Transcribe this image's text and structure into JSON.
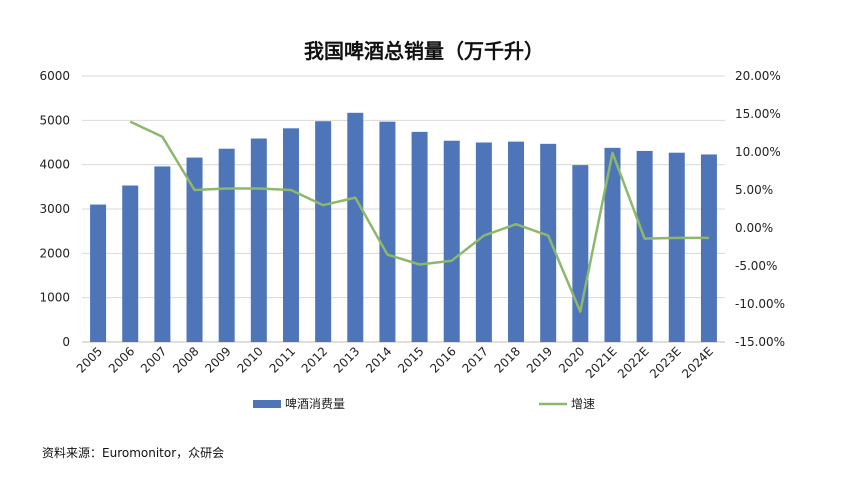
{
  "chart_data": {
    "type": "bar",
    "title": "我国啤酒总销量（万千升）",
    "categories": [
      "2005",
      "2006",
      "2007",
      "2008",
      "2009",
      "2010",
      "2011",
      "2012",
      "2013",
      "2014",
      "2015",
      "2016",
      "2017",
      "2018",
      "2019",
      "2020",
      "2021E",
      "2022E",
      "2023E",
      "2024E"
    ],
    "series": [
      {
        "name": "啤酒消费量",
        "type": "bar",
        "axis": "left",
        "color": "#4F75B9",
        "values": [
          3100,
          3530,
          3960,
          4160,
          4360,
          4590,
          4820,
          4980,
          5170,
          4970,
          4740,
          4540,
          4500,
          4520,
          4470,
          3990,
          4380,
          4310,
          4270,
          4230
        ]
      },
      {
        "name": "增速",
        "type": "line",
        "axis": "right",
        "color": "#8DB86C",
        "values": [
          null,
          0.14,
          0.12,
          0.05,
          0.052,
          0.052,
          0.05,
          0.03,
          0.04,
          -0.035,
          -0.048,
          -0.043,
          -0.01,
          0.005,
          -0.01,
          -0.11,
          0.099,
          -0.014,
          -0.013,
          -0.013
        ]
      }
    ],
    "ylim": [
      0,
      6000
    ],
    "y_ticks": [
      "0",
      "1000",
      "2000",
      "3000",
      "4000",
      "5000",
      "6000"
    ],
    "y2lim": [
      -0.15,
      0.2
    ],
    "y2_ticks": [
      "-15.00%",
      "-10.00%",
      "-5.00%",
      "0.00%",
      "5.00%",
      "10.00%",
      "15.00%",
      "20.00%"
    ],
    "grid": true,
    "legend_position": "bottom"
  },
  "source_text": "资料来源：Euromonitor，众研会"
}
